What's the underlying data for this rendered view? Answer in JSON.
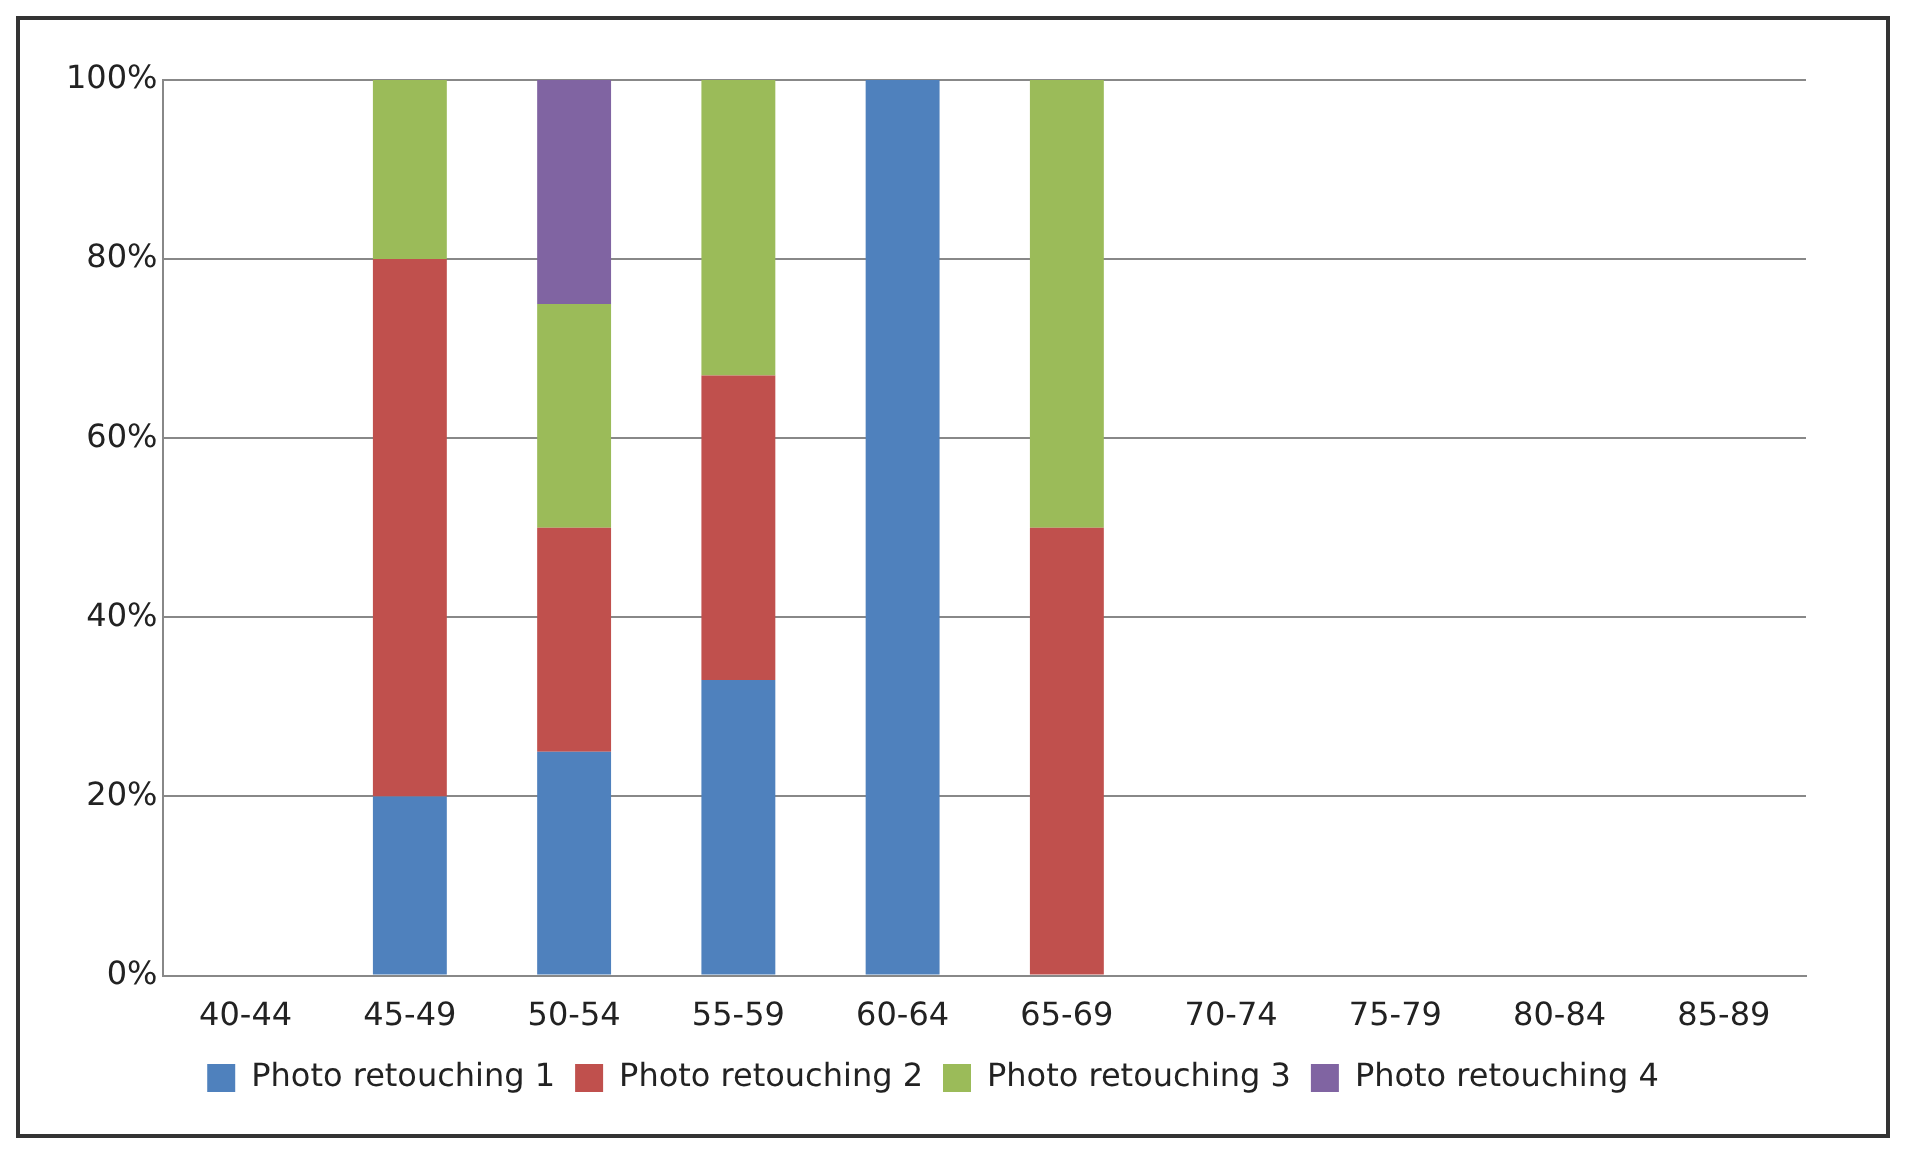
{
  "chart_data": {
    "type": "bar",
    "stacked": true,
    "categories": [
      "40-44",
      "45-49",
      "50-54",
      "55-59",
      "60-64",
      "65-69",
      "70-74",
      "75-79",
      "80-84",
      "85-89"
    ],
    "series": [
      {
        "name": "Photo retouching 1",
        "color": "#4f81bd",
        "values": [
          0,
          20,
          25,
          33,
          100,
          0,
          0,
          0,
          0,
          0
        ]
      },
      {
        "name": "Photo retouching 2",
        "color": "#c0504d",
        "values": [
          0,
          60,
          25,
          34,
          0,
          50,
          0,
          0,
          0,
          0
        ]
      },
      {
        "name": "Photo retouching 3",
        "color": "#9bbb59",
        "values": [
          0,
          20,
          25,
          33,
          0,
          50,
          0,
          0,
          0,
          0
        ]
      },
      {
        "name": "Photo retouching 4",
        "color": "#8064a2",
        "values": [
          0,
          0,
          25,
          0,
          0,
          0,
          0,
          0,
          0,
          0
        ]
      }
    ],
    "ylim": [
      0,
      100
    ],
    "yticks": [
      {
        "value": 0,
        "label": "0%"
      },
      {
        "value": 20,
        "label": "20%"
      },
      {
        "value": 40,
        "label": "40%"
      },
      {
        "value": 60,
        "label": "60%"
      },
      {
        "value": 80,
        "label": "80%"
      },
      {
        "value": 100,
        "label": "100%"
      }
    ],
    "grid": "y",
    "legend": "bottom"
  }
}
